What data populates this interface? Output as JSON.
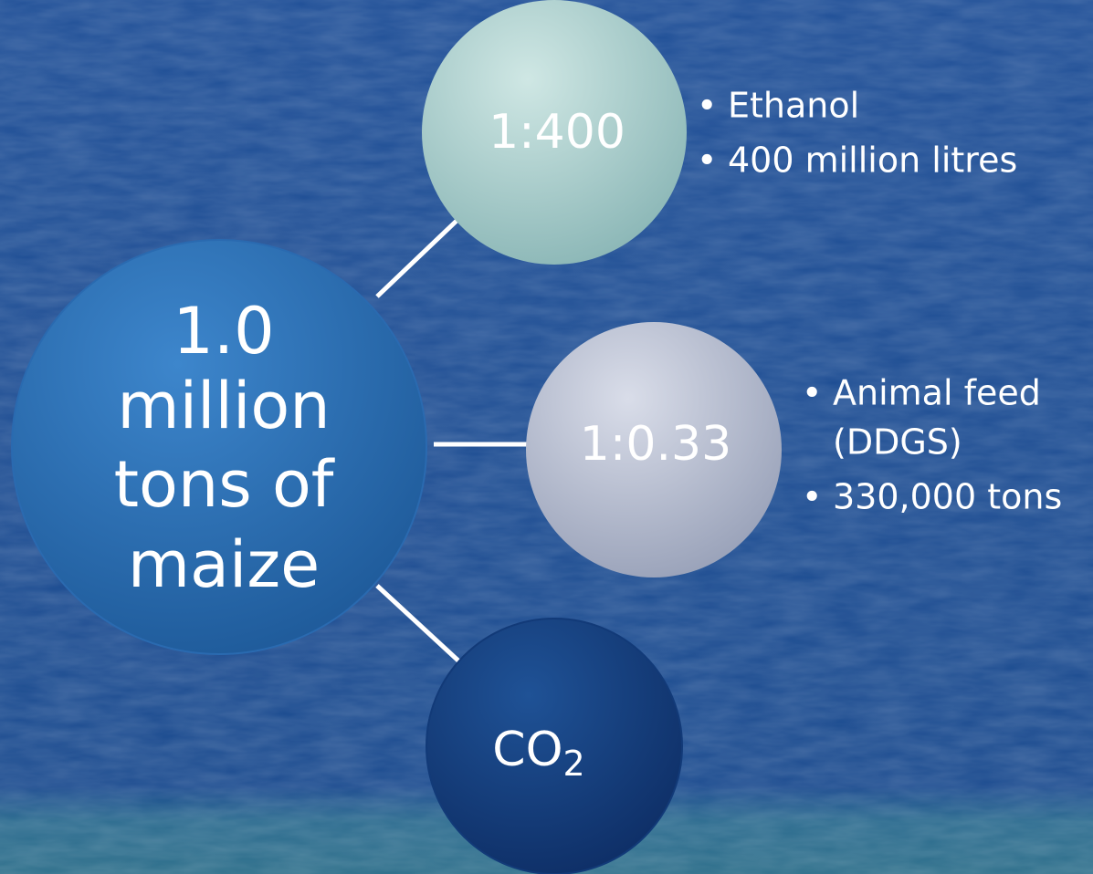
{
  "center": {
    "lines": [
      "1.0",
      "million",
      "tons of",
      "maize"
    ]
  },
  "nodes": [
    {
      "label": "1:400",
      "bullets": [
        [
          "Ethanol"
        ],
        [
          "400 million litres"
        ]
      ]
    },
    {
      "label": "1:0.33",
      "bullets": [
        [
          "Animal feed",
          "(DDGS)"
        ],
        [
          "330,000 tons"
        ]
      ]
    },
    {
      "label": "CO",
      "subscript": "2"
    }
  ]
}
